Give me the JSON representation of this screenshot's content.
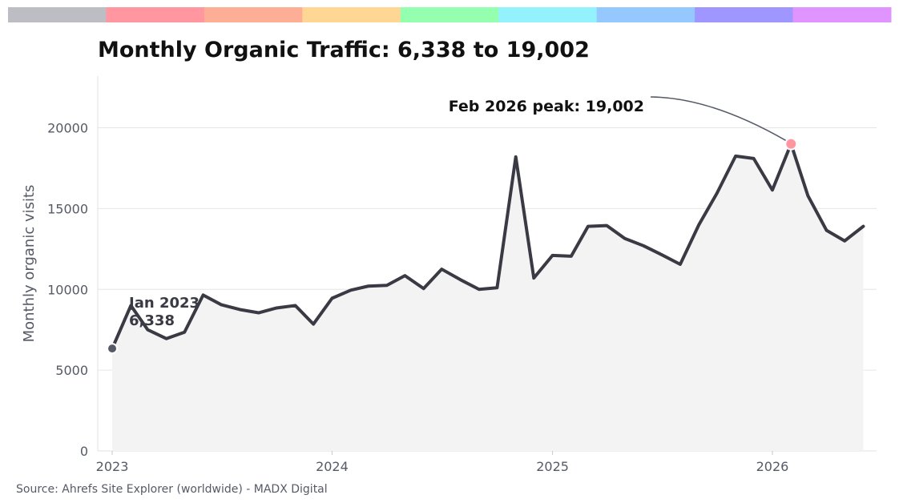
{
  "palette_strip": [
    "#bcbec4",
    "#ff96a0",
    "#ffae96",
    "#ffd694",
    "#94ffae",
    "#94f2ff",
    "#94c8ff",
    "#a096ff",
    "#e094ff"
  ],
  "colors": {
    "line": "#3a3a44",
    "fill": "#f3f3f4",
    "grid": "#e6e6e6",
    "peak_marker": "#ff96a0",
    "start_marker": "#555a66"
  },
  "chart_data": {
    "type": "line",
    "title": "Monthly Organic Traffic: 6,338 to 19,002",
    "xlabel": "",
    "ylabel": "Monthly organic visits",
    "source": "Source: Ahrefs Site Explorer (worldwide) - MADX Digital",
    "grid": true,
    "xlim": [
      "2022-12-08",
      "2026-06-23"
    ],
    "ylim": [
      0,
      23200
    ],
    "x_ticks": [
      {
        "date": "2023-01-01",
        "label": "2023"
      },
      {
        "date": "2024-01-01",
        "label": "2024"
      },
      {
        "date": "2025-01-01",
        "label": "2025"
      },
      {
        "date": "2026-01-01",
        "label": "2026"
      }
    ],
    "y_ticks": [
      0,
      5000,
      10000,
      15000,
      20000
    ],
    "series": [
      {
        "x": [
          "2023-01-01",
          "2023-02-01",
          "2023-03-01",
          "2023-04-01",
          "2023-05-01",
          "2023-06-01",
          "2023-07-01",
          "2023-08-01",
          "2023-09-01",
          "2023-10-01",
          "2023-11-01",
          "2023-12-01",
          "2024-01-01",
          "2024-02-01",
          "2024-03-01",
          "2024-04-01",
          "2024-05-01",
          "2024-06-01",
          "2024-07-01",
          "2024-08-01",
          "2024-09-01",
          "2024-10-01",
          "2024-11-01",
          "2024-12-01",
          "2025-01-01",
          "2025-02-01",
          "2025-03-01",
          "2025-04-01",
          "2025-05-01",
          "2025-06-01",
          "2025-07-01",
          "2025-08-01",
          "2025-09-01",
          "2025-10-01",
          "2025-11-01",
          "2025-12-01",
          "2026-01-01",
          "2026-02-01",
          "2026-03-01",
          "2026-04-01",
          "2026-05-01",
          "2026-06-01"
        ],
        "y": [
          6338,
          9000,
          7500,
          6950,
          7350,
          9650,
          9050,
          8750,
          8550,
          8850,
          9000,
          7850,
          9450,
          9950,
          10200,
          10250,
          10850,
          10050,
          11250,
          10600,
          10000,
          10100,
          18200,
          10700,
          12100,
          12050,
          13900,
          13950,
          13150,
          12700,
          12150,
          11550,
          14000,
          15950,
          18250,
          18100,
          16150,
          19002,
          15800,
          13650,
          13000,
          13900
        ]
      }
    ],
    "annotations": [
      {
        "id": "start",
        "date": "2023-01-01",
        "value": 6338,
        "lines": [
          "Jan 2023",
          "6,338"
        ]
      },
      {
        "id": "peak",
        "date": "2026-02-01",
        "value": 19002,
        "text": "Feb 2026 peak: 19,002"
      }
    ]
  }
}
